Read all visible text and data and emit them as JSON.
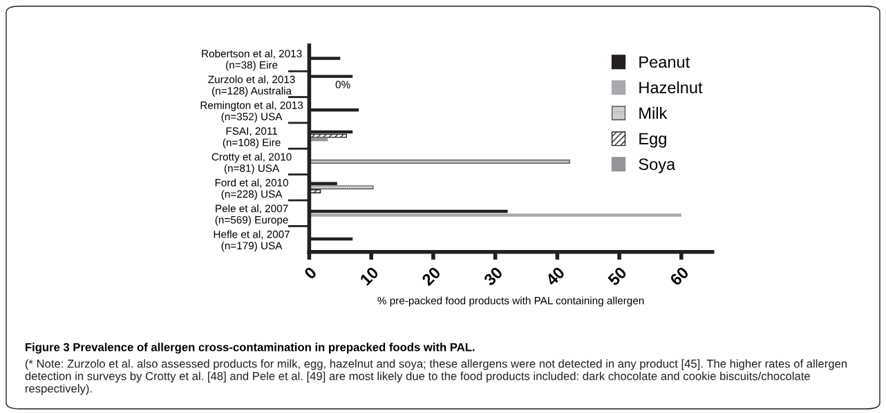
{
  "chart_data": {
    "type": "bar",
    "orientation": "horizontal",
    "title": "Figure 3 Prevalence of allergen cross-contamination in prepacked foods with PAL.",
    "xlabel": "% pre-packed food products with PAL containing allergen",
    "categories": [
      "Robertson et al, 2013\n(n=38) Eire",
      "Zurzolo et al, 2013\n(n=128) Australia",
      "Remington et al, 2013\n(n=352) USA",
      "FSAI, 2011\n(n=108) Eire",
      "Crotty et al, 2010\n(n=81) USA",
      "Ford et al, 2010\n(n=228) USA",
      "Pele et al, 2007\n(n=569) Europe",
      "Hefle et al, 2007\n(n=179) USA"
    ],
    "series": [
      {
        "name": "Peanut",
        "color": "#231f20",
        "values": [
          5,
          7,
          8,
          7,
          null,
          4.5,
          32,
          7
        ]
      },
      {
        "name": "Hazelnut",
        "color": "#a7a9ac",
        "values": [
          null,
          0,
          null,
          null,
          null,
          null,
          60,
          null
        ]
      },
      {
        "name": "Milk",
        "color": "#58595b",
        "values": [
          null,
          0,
          null,
          null,
          42,
          10.3,
          null,
          null
        ]
      },
      {
        "name": "Egg",
        "color": "#231f21",
        "values": [
          null,
          0,
          null,
          6,
          null,
          1.8,
          null,
          null
        ]
      },
      {
        "name": "Soya",
        "color": "#939598",
        "values": [
          null,
          0,
          null,
          3,
          null,
          null,
          null,
          null
        ]
      }
    ],
    "xlim": [
      0,
      65
    ],
    "xticks": [
      0,
      10,
      20,
      30,
      40,
      50,
      60
    ],
    "grid": false,
    "legend": "top right",
    "annotations": [
      {
        "text": "0%",
        "x": 0,
        "y": "Zurzolo et al, 2013\n(n=128) Australia"
      },
      "(* Note: Zurzolo et al. also assessed products for milk, egg, hazelnut and soya; these allergens were not detected in any product [45]. The higher rates of allergen detection in surveys by Crotty et al. [48] and Pele et al. [49] are most likely due to the food products included: dark chocolate and cookie biscuits/chocolate respectively)."
    ]
  }
}
